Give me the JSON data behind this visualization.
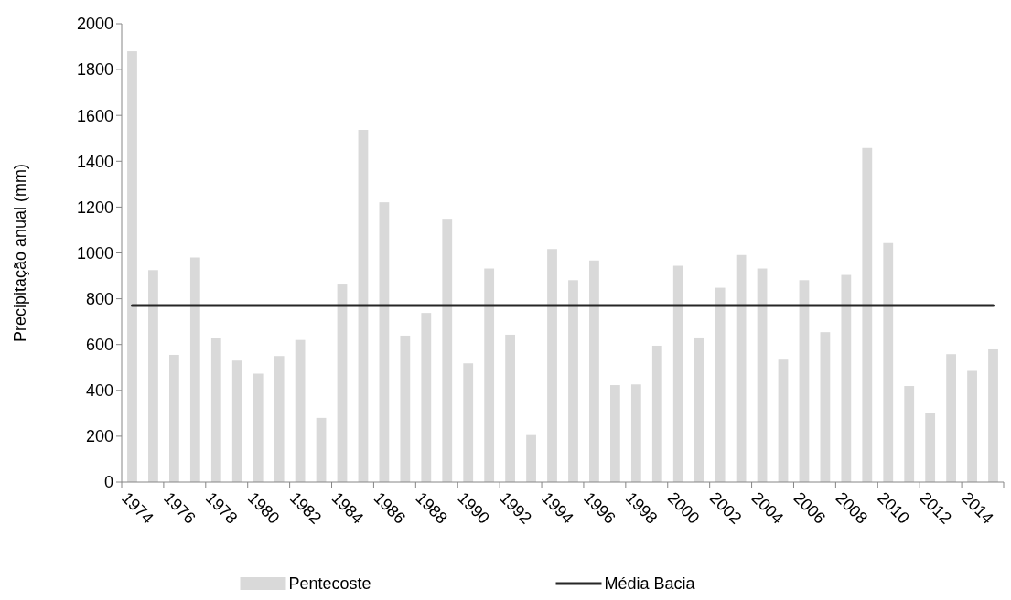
{
  "chart_data": {
    "type": "bar",
    "ylabel": "Precipitação anual (mm)",
    "categories": [
      "1974",
      null,
      "1976",
      null,
      "1978",
      null,
      "1980",
      null,
      "1982",
      null,
      "1984",
      null,
      "1986",
      null,
      "1988",
      null,
      "1990",
      null,
      "1992",
      null,
      "1994",
      null,
      "1996",
      null,
      "1998",
      null,
      "2000",
      null,
      "2002",
      null,
      "2004",
      null,
      "2006",
      null,
      "2008",
      null,
      "2010",
      null,
      "2012",
      null,
      "2014",
      null
    ],
    "series": [
      {
        "name": "Pentecoste",
        "color": "#d9d9d9",
        "values": [
          1880,
          925,
          555,
          980,
          630,
          530,
          473,
          550,
          620,
          280,
          862,
          1537,
          1221,
          639,
          738,
          1149,
          518,
          932,
          643,
          205,
          1017,
          881,
          967,
          423,
          426,
          595,
          944,
          631,
          848,
          991,
          932,
          534,
          881,
          654,
          904,
          1458,
          1043,
          419,
          302,
          558,
          485,
          579
        ]
      },
      {
        "name": "Média Bacia",
        "type": "line",
        "color": "#262626",
        "values": [
          770,
          770,
          770,
          770,
          770,
          770,
          770,
          770,
          770,
          770,
          770,
          770,
          770,
          770,
          770,
          770,
          770,
          770,
          770,
          770,
          770,
          770,
          770,
          770,
          770,
          770,
          770,
          770,
          770,
          770,
          770,
          770,
          770,
          770,
          770,
          770,
          770,
          770,
          770,
          770,
          770,
          770
        ]
      }
    ],
    "ylim": [
      0,
      2000
    ],
    "yticks": [
      0,
      200,
      400,
      600,
      800,
      1000,
      1200,
      1400,
      1600,
      1800,
      2000
    ],
    "legend": "bottom"
  }
}
